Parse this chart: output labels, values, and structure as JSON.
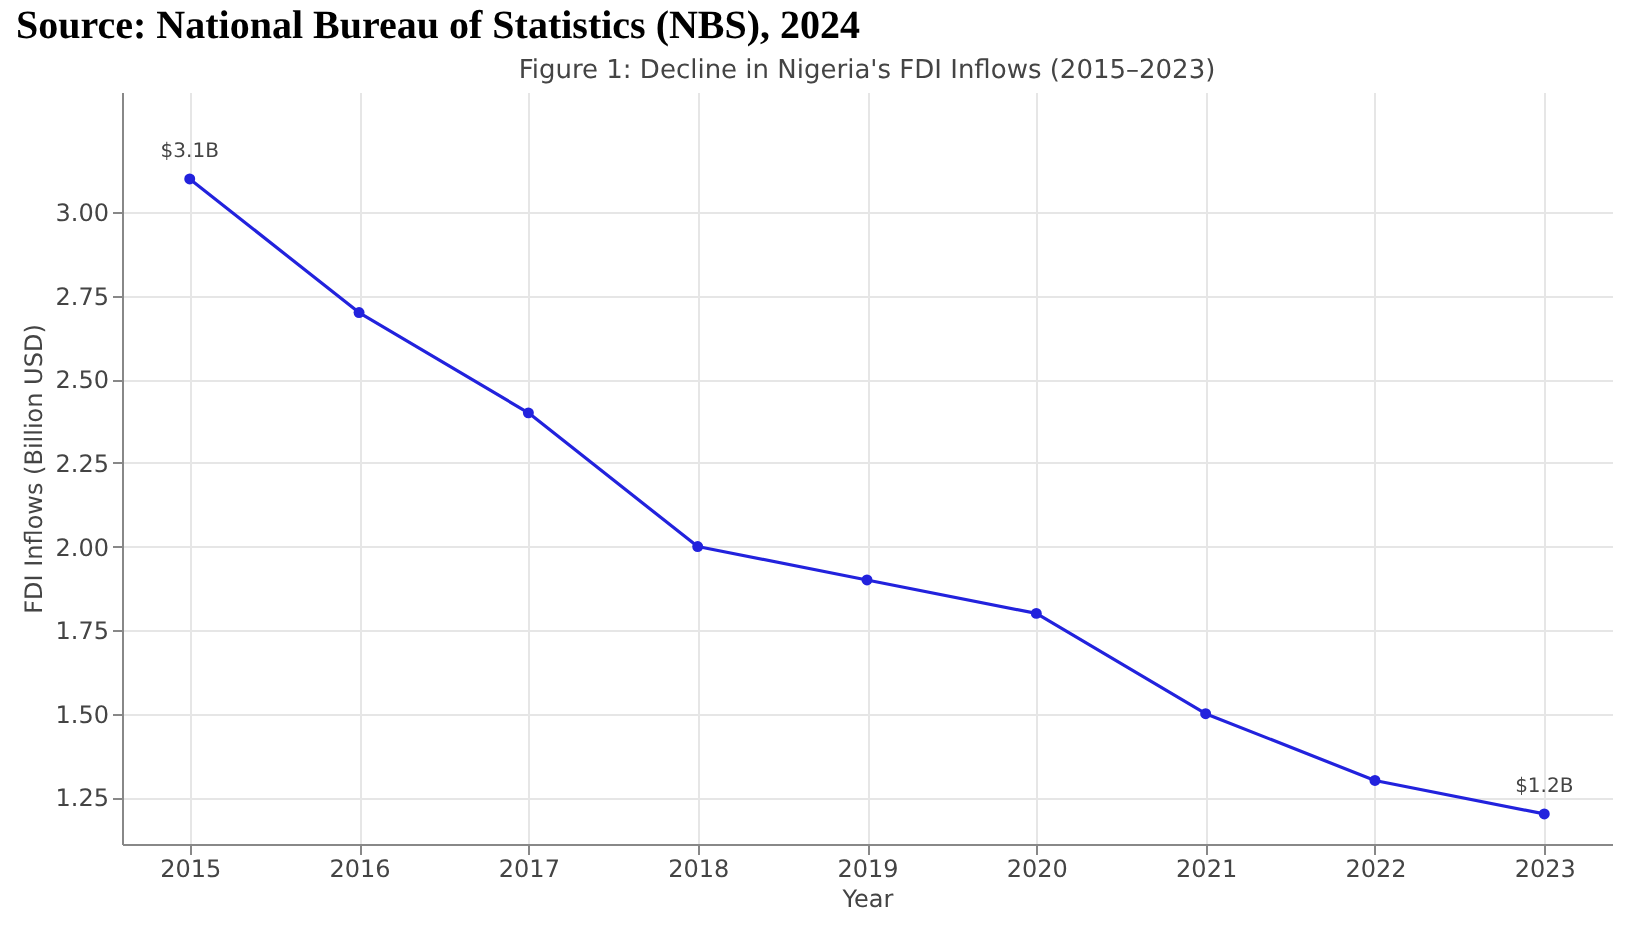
{
  "chart_data": {
    "type": "line",
    "title": "Figure 1: Decline in Nigeria's FDI Inflows (2015–2023)",
    "xlabel": "Year",
    "ylabel": "FDI Inflows (Billion USD)",
    "x": [
      2015,
      2016,
      2017,
      2018,
      2019,
      2020,
      2021,
      2022,
      2023
    ],
    "series": [
      {
        "color": "#2222dd",
        "values": [
          3.1,
          2.7,
          2.4,
          2.0,
          1.9,
          1.8,
          1.5,
          1.3,
          1.2
        ]
      }
    ],
    "xlim": [
      2014.6,
      2023.4
    ],
    "xticks": [
      2015,
      2016,
      2017,
      2018,
      2019,
      2020,
      2021,
      2022,
      2023
    ],
    "ylim": [
      1.11,
      3.36
    ],
    "yticks": [
      {
        "value": 1.25,
        "label": "1.25"
      },
      {
        "value": 1.5,
        "label": "1.50"
      },
      {
        "value": 1.75,
        "label": "1.75"
      },
      {
        "value": 2.0,
        "label": "2.00"
      },
      {
        "value": 2.25,
        "label": "2.25"
      },
      {
        "value": 2.5,
        "label": "2.50"
      },
      {
        "value": 2.75,
        "label": "2.75"
      },
      {
        "value": 3.0,
        "label": "3.00"
      }
    ],
    "grid": true,
    "marker": "circle",
    "line_style": "solid",
    "annotations": [
      "Source: National Bureau of Statistics (NBS), 2024",
      {
        "text": "$3.1B",
        "x": 2015,
        "y": 3.1
      },
      {
        "text": "$1.2B",
        "x": 2023,
        "y": 1.2
      }
    ]
  }
}
